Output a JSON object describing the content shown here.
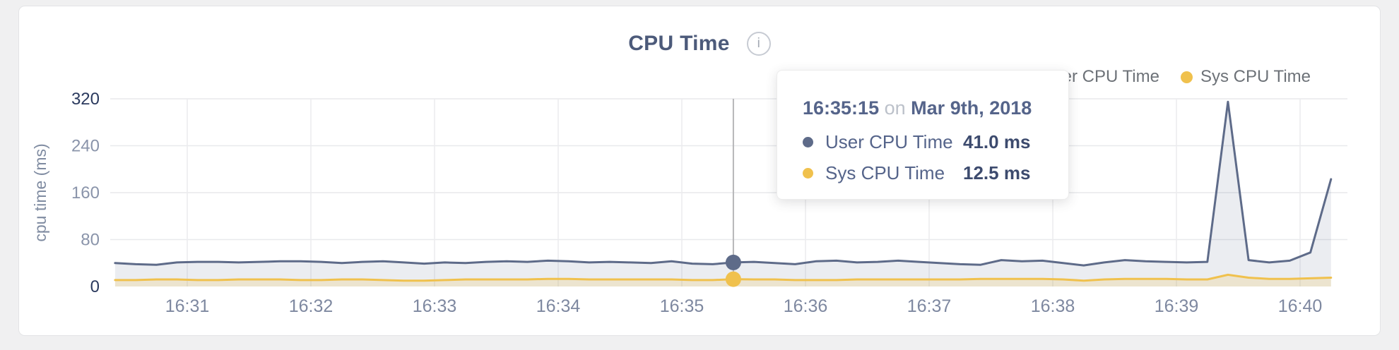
{
  "header": {
    "title": "CPU Time",
    "info_glyph": "i"
  },
  "legend": [
    {
      "label": "User CPU Time",
      "color": "#5e6b89"
    },
    {
      "label": "Sys CPU Time",
      "color": "#f0c14d"
    }
  ],
  "tooltip": {
    "time": "16:35:15",
    "connector": "on",
    "date": "Mar 9th, 2018",
    "rows": [
      {
        "label": "User CPU Time",
        "value": "41.0 ms",
        "color": "#5e6b89"
      },
      {
        "label": "Sys CPU Time",
        "value": "12.5 ms",
        "color": "#f0c14d"
      }
    ]
  },
  "chart_data": {
    "type": "area",
    "title": "CPU Time",
    "ylabel": "cpu time (ms)",
    "ylim": [
      0,
      320
    ],
    "yticks": [
      0,
      80,
      160,
      240,
      320
    ],
    "ytick_major_color": "#2b3a5e",
    "ytick_minor_color": "#8a94aa",
    "xticks": [
      "16:31",
      "16:32",
      "16:33",
      "16:34",
      "16:35",
      "16:36",
      "16:37",
      "16:38",
      "16:39",
      "16:40"
    ],
    "x_start": "16:30:25",
    "x_interval_seconds": 10,
    "grid": true,
    "legend_position": "top-right",
    "hover_index": 30,
    "hover_time_label": "16:35:15",
    "series": [
      {
        "name": "User CPU Time",
        "color": "#5e6b89",
        "fill": "rgba(94,107,137,0.12)",
        "values": [
          40,
          38,
          37,
          41,
          42,
          42,
          41,
          42,
          43,
          43,
          42,
          40,
          42,
          43,
          41,
          39,
          41,
          40,
          42,
          43,
          42,
          44,
          43,
          41,
          42,
          41,
          40,
          43,
          39,
          38,
          41,
          42,
          40,
          38,
          43,
          44,
          41,
          42,
          44,
          42,
          40,
          38,
          37,
          45,
          43,
          44,
          40,
          36,
          41,
          45,
          43,
          42,
          41,
          42,
          315,
          45,
          41,
          44,
          58,
          183
        ]
      },
      {
        "name": "Sys CPU Time",
        "color": "#f0c14d",
        "fill": "rgba(240,193,77,0.20)",
        "values": [
          11,
          11,
          12,
          12,
          11,
          11,
          12,
          12,
          12,
          11,
          11,
          12,
          12,
          11,
          10,
          10,
          11,
          12,
          12,
          12,
          12,
          13,
          13,
          12,
          12,
          12,
          12,
          12,
          11,
          11,
          12.5,
          12,
          12,
          11,
          11,
          11,
          12,
          12,
          12,
          12,
          12,
          12,
          13,
          13,
          13,
          13,
          12,
          10,
          12,
          13,
          13,
          13,
          12,
          12,
          20,
          15,
          13,
          13,
          14,
          15
        ]
      }
    ]
  }
}
